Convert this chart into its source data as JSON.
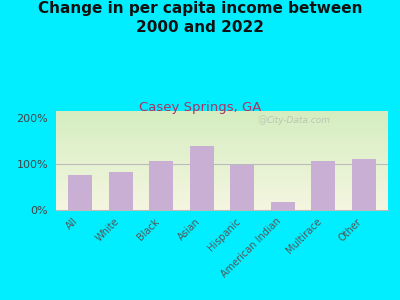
{
  "title": "Change in per capita income between\n2000 and 2022",
  "subtitle": "Casey Springs, GA",
  "categories": [
    "All",
    "White",
    "Black",
    "Asian",
    "Hispanic",
    "American Indian",
    "Multirace",
    "Other"
  ],
  "values": [
    75,
    82,
    107,
    138,
    98,
    18,
    107,
    110
  ],
  "bar_color": "#c9afd4",
  "background_outer": "#00eeff",
  "background_inner_top_left": "#d4edc0",
  "background_inner_top_right": "#e8f0d8",
  "background_inner_bottom": "#f5f5e0",
  "title_fontsize": 11,
  "subtitle_fontsize": 9.5,
  "subtitle_color": "#b03060",
  "title_color": "#111111",
  "tick_label_color": "#555555",
  "axis_label_color": "#444444",
  "yticks": [
    0,
    100,
    200
  ],
  "ytick_labels": [
    "0%",
    "100%",
    "200%"
  ],
  "ylim": [
    0,
    215
  ],
  "watermark": "City-Data.com"
}
